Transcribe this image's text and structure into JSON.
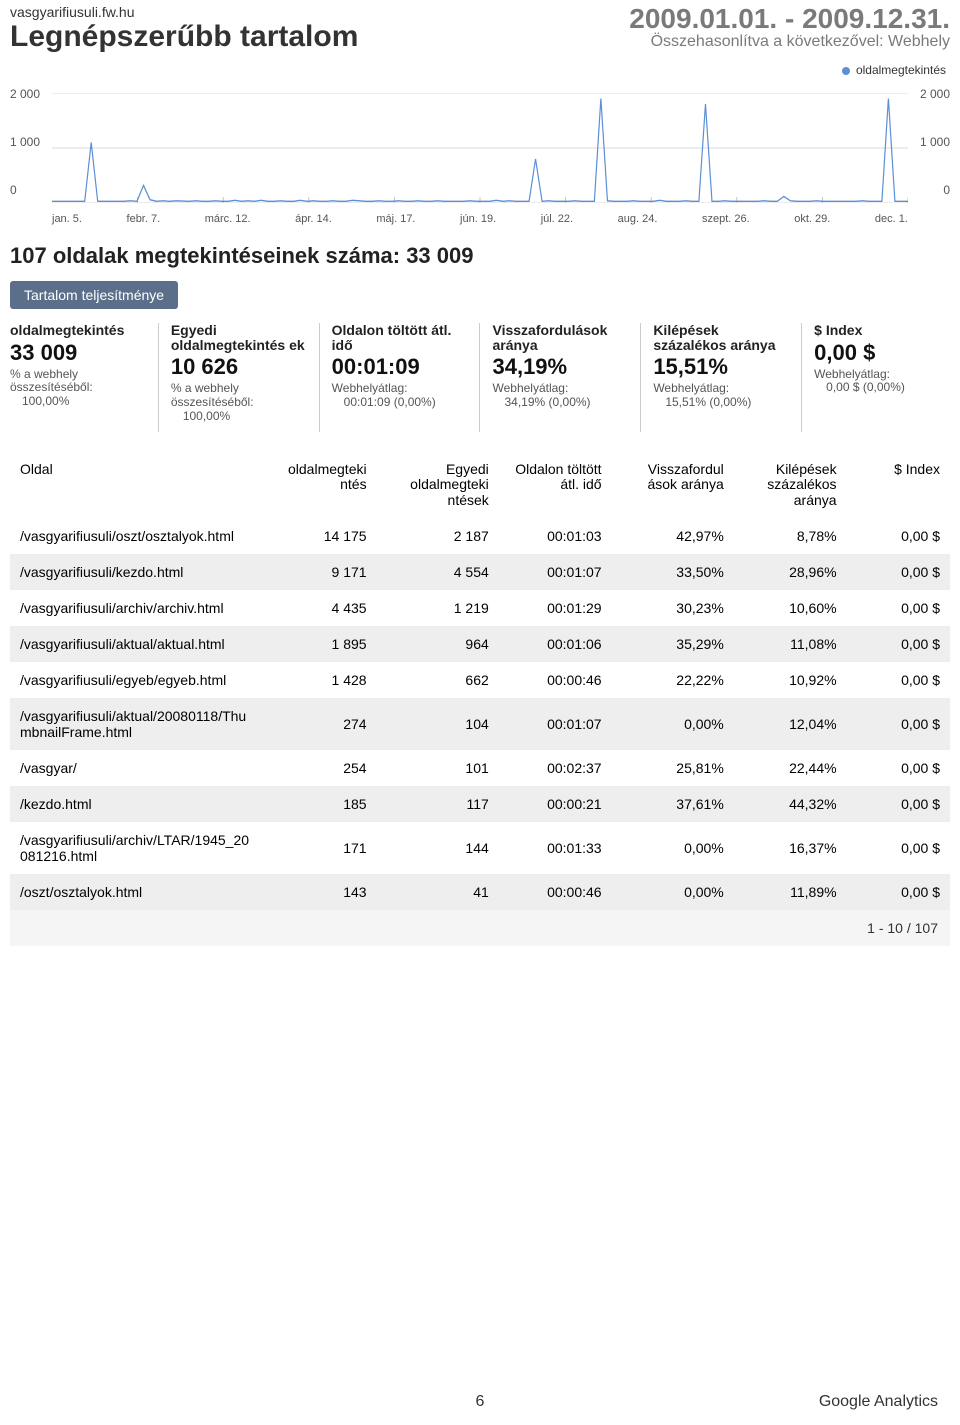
{
  "header": {
    "site": "vasgyarifiusuli.fw.hu",
    "title": "Legnépszerűbb tartalom",
    "date_range": "2009.01.01. - 2009.12.31.",
    "compare": "Összehasonlítva a következővel: Webhely"
  },
  "legend": {
    "label": "oldalmegtekintés",
    "dot_color": "#5b8fd6"
  },
  "chart": {
    "type": "line",
    "ylim": [
      0,
      2000
    ],
    "yticks_left": [
      "2 000",
      "1 000",
      "0"
    ],
    "yticks_right": [
      "2 000",
      "1 000",
      "0"
    ],
    "x_labels": [
      "jan. 5.",
      "febr. 7.",
      "márc. 12.",
      "ápr. 14.",
      "máj. 17.",
      "jún. 19.",
      "júl. 22.",
      "aug. 24.",
      "szept. 26.",
      "okt. 29.",
      "dec. 1."
    ],
    "background_color": "#ffffff",
    "grid_color": "#d9d9d9",
    "line_color": "#5b8fd6",
    "line_width": 1.4,
    "values": [
      30,
      30,
      30,
      30,
      30,
      30,
      1100,
      30,
      30,
      30,
      30,
      30,
      40,
      30,
      320,
      60,
      30,
      40,
      30,
      40,
      35,
      30,
      40,
      30,
      30,
      40,
      30,
      30,
      50,
      30,
      40,
      30,
      50,
      30,
      30,
      40,
      30,
      30,
      50,
      30,
      40,
      30,
      30,
      40,
      30,
      30,
      50,
      40,
      30,
      30,
      40,
      30,
      30,
      40,
      30,
      30,
      40,
      30,
      30,
      40,
      30,
      30,
      30,
      30,
      40,
      30,
      30,
      30,
      50,
      30,
      40,
      30,
      30,
      30,
      800,
      30,
      40,
      30,
      30,
      30,
      40,
      30,
      30,
      30,
      1900,
      40,
      30,
      30,
      30,
      40,
      30,
      30,
      30,
      50,
      30,
      30,
      30,
      40,
      30,
      30,
      1800,
      30,
      30,
      40,
      30,
      30,
      30,
      30,
      30,
      40,
      30,
      30,
      120,
      40,
      30,
      30,
      30,
      40,
      30,
      30,
      30,
      30,
      30,
      30,
      40,
      30,
      30,
      30,
      1900,
      30,
      30,
      30
    ]
  },
  "summary": {
    "title": "107 oldalak megtekintéseinek száma: 33 009",
    "tab_label": "Tartalom teljesítménye"
  },
  "scorecards": [
    {
      "label": "oldalmegtekintés",
      "value": "33 009",
      "sub1": "% a webhely összesítéséből:",
      "sub2": "100,00%"
    },
    {
      "label": "Egyedi oldalmegtekintés ek",
      "value": "10 626",
      "sub1": "% a webhely összesítéséből:",
      "sub2": "100,00%"
    },
    {
      "label": "Oldalon töltött átl. idő",
      "value": "00:01:09",
      "sub1": "Webhelyátlag:",
      "sub2": "00:01:09 (0,00%)"
    },
    {
      "label": "Visszafordulások aránya",
      "value": "34,19%",
      "sub1": "Webhelyátlag:",
      "sub2": "34,19% (0,00%)"
    },
    {
      "label": "Kilépések százalékos aránya",
      "value": "15,51%",
      "sub1": "Webhelyátlag:",
      "sub2": "15,51% (0,00%)"
    },
    {
      "label": "$ Index",
      "value": "0,00 $",
      "sub1": "Webhelyátlag:",
      "sub2": "0,00 $ (0,00%)"
    }
  ],
  "table": {
    "columns": [
      "Oldal",
      "oldalmegteki ntés",
      "Egyedi oldalmegteki ntések",
      "Oldalon töltött átl. idő",
      "Visszafordul ások aránya",
      "Kilépések százalékos aránya",
      "$ Index"
    ],
    "col_widths": [
      "27%",
      "12%",
      "13%",
      "12%",
      "13%",
      "12%",
      "11%"
    ],
    "rows": [
      [
        "/vasgyarifiusuli/oszt/osztalyok.html",
        "14 175",
        "2 187",
        "00:01:03",
        "42,97%",
        "8,78%",
        "0,00 $"
      ],
      [
        "/vasgyarifiusuli/kezdo.html",
        "9 171",
        "4 554",
        "00:01:07",
        "33,50%",
        "28,96%",
        "0,00 $"
      ],
      [
        "/vasgyarifiusuli/archiv/archiv.html",
        "4 435",
        "1 219",
        "00:01:29",
        "30,23%",
        "10,60%",
        "0,00 $"
      ],
      [
        "/vasgyarifiusuli/aktual/aktual.html",
        "1 895",
        "964",
        "00:01:06",
        "35,29%",
        "11,08%",
        "0,00 $"
      ],
      [
        "/vasgyarifiusuli/egyeb/egyeb.html",
        "1 428",
        "662",
        "00:00:46",
        "22,22%",
        "10,92%",
        "0,00 $"
      ],
      [
        "/vasgyarifiusuli/aktual/20080118/ThumbnailFrame.html",
        "274",
        "104",
        "00:01:07",
        "0,00%",
        "12,04%",
        "0,00 $"
      ],
      [
        "/vasgyar/",
        "254",
        "101",
        "00:02:37",
        "25,81%",
        "22,44%",
        "0,00 $"
      ],
      [
        "/kezdo.html",
        "185",
        "117",
        "00:00:21",
        "37,61%",
        "44,32%",
        "0,00 $"
      ],
      [
        "/vasgyarifiusuli/archiv/LTAR/1945_20081216.html",
        "171",
        "144",
        "00:01:33",
        "0,00%",
        "16,37%",
        "0,00 $"
      ],
      [
        "/oszt/osztalyok.html",
        "143",
        "41",
        "00:00:46",
        "0,00%",
        "11,89%",
        "0,00 $"
      ]
    ],
    "pager": "1 - 10 / 107"
  },
  "footer": {
    "page_number": "6",
    "brand": "Google Analytics"
  }
}
